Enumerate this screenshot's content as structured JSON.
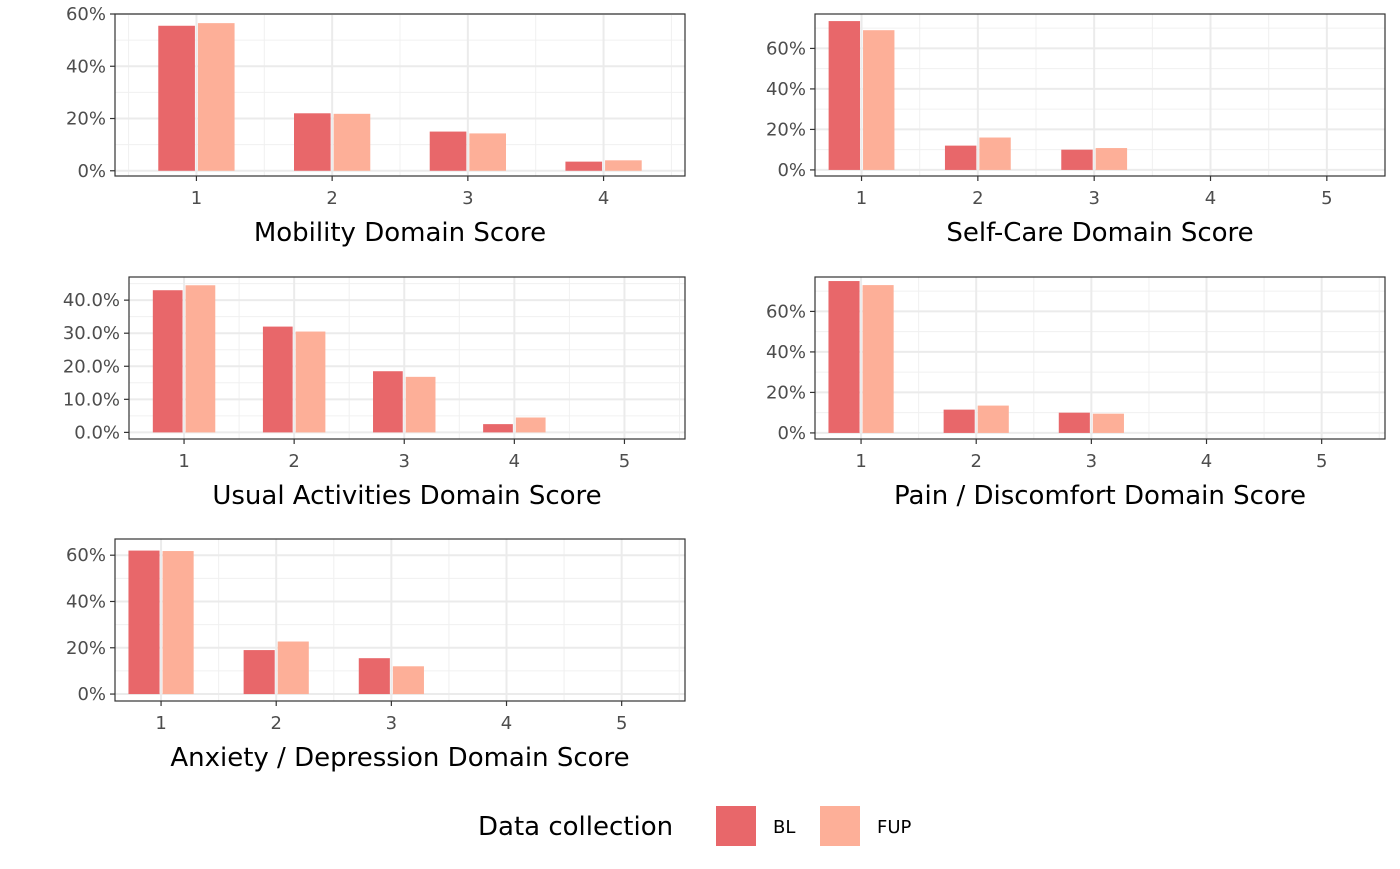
{
  "colors": {
    "BL": "#e8676a",
    "FUP": "#fdaf98"
  },
  "legend": {
    "title": "Data collection",
    "items": [
      {
        "key": "BL",
        "label": "BL"
      },
      {
        "key": "FUP",
        "label": "FUP"
      }
    ],
    "position": "bottom"
  },
  "chart_data": [
    {
      "type": "bar",
      "xlabel": "Mobility Domain Score",
      "x": [
        1,
        2,
        3,
        4
      ],
      "xlim": [
        0.4,
        4.6
      ],
      "ylim": [
        -0.02,
        0.6
      ],
      "yticks": [
        0,
        0.2,
        0.4,
        0.6
      ],
      "ytick_labels": [
        "0%",
        "20%",
        "40%",
        "60%"
      ],
      "grid": true,
      "series": [
        {
          "name": "BL",
          "values": [
            0.555,
            0.22,
            0.15,
            0.035
          ]
        },
        {
          "name": "FUP",
          "values": [
            0.565,
            0.218,
            0.143,
            0.04
          ]
        }
      ]
    },
    {
      "type": "bar",
      "xlabel": "Self-Care Domain Score",
      "x": [
        1,
        2,
        3,
        4,
        5
      ],
      "xlim": [
        0.6,
        5.5
      ],
      "ylim": [
        -0.03,
        0.77
      ],
      "yticks": [
        0,
        0.2,
        0.4,
        0.6
      ],
      "ytick_labels": [
        "0%",
        "20%",
        "40%",
        "60%"
      ],
      "grid": true,
      "series": [
        {
          "name": "BL",
          "values": [
            0.735,
            0.12,
            0.1,
            0,
            0
          ]
        },
        {
          "name": "FUP",
          "values": [
            0.69,
            0.16,
            0.108,
            0,
            0
          ]
        }
      ]
    },
    {
      "type": "bar",
      "xlabel": "Usual Activities Domain Score",
      "x": [
        1,
        2,
        3,
        4,
        5
      ],
      "xlim": [
        0.5,
        5.55
      ],
      "ylim": [
        -0.02,
        0.47
      ],
      "yticks": [
        0,
        0.1,
        0.2,
        0.3,
        0.4
      ],
      "ytick_labels": [
        "0.0%",
        "10.0%",
        "20.0%",
        "30.0%",
        "40.0%"
      ],
      "grid": true,
      "series": [
        {
          "name": "BL",
          "values": [
            0.43,
            0.32,
            0.185,
            0.025,
            0
          ]
        },
        {
          "name": "FUP",
          "values": [
            0.445,
            0.305,
            0.168,
            0.045,
            0
          ]
        }
      ]
    },
    {
      "type": "bar",
      "xlabel": "Pain / Discomfort Domain Score",
      "x": [
        1,
        2,
        3,
        4,
        5
      ],
      "xlim": [
        0.6,
        5.55
      ],
      "ylim": [
        -0.03,
        0.77
      ],
      "yticks": [
        0,
        0.2,
        0.4,
        0.6
      ],
      "ytick_labels": [
        "0%",
        "20%",
        "40%",
        "60%"
      ],
      "grid": true,
      "series": [
        {
          "name": "BL",
          "values": [
            0.75,
            0.115,
            0.1,
            0,
            0
          ]
        },
        {
          "name": "FUP",
          "values": [
            0.73,
            0.135,
            0.095,
            0,
            0
          ]
        }
      ]
    },
    {
      "type": "bar",
      "xlabel": "Anxiety / Depression Domain Score",
      "x": [
        1,
        2,
        3,
        4,
        5
      ],
      "xlim": [
        0.6,
        5.55
      ],
      "ylim": [
        -0.03,
        0.67
      ],
      "yticks": [
        0,
        0.2,
        0.4,
        0.6
      ],
      "ytick_labels": [
        "0%",
        "20%",
        "40%",
        "60%"
      ],
      "grid": true,
      "series": [
        {
          "name": "BL",
          "values": [
            0.62,
            0.19,
            0.155,
            0,
            0
          ]
        },
        {
          "name": "FUP",
          "values": [
            0.618,
            0.227,
            0.12,
            0,
            0
          ]
        }
      ]
    }
  ]
}
